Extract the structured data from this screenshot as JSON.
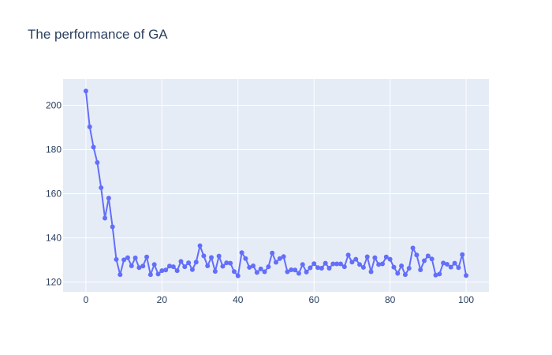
{
  "chart_data": {
    "type": "line",
    "title": "The performance of GA",
    "xlabel": "",
    "ylabel": "",
    "xlim": [
      -6,
      106
    ],
    "ylim": [
      115.5,
      212
    ],
    "x_ticks": [
      0,
      20,
      40,
      60,
      80,
      100
    ],
    "y_ticks": [
      120,
      140,
      160,
      180,
      200
    ],
    "grid": true,
    "colors": {
      "plot_background": "#e5ecf6",
      "grid": "#ffffff",
      "series": "#636efa",
      "text": "#2a3f5f"
    },
    "series": [
      {
        "mode": "lines+markers",
        "x": [
          0,
          1,
          2,
          3,
          4,
          5,
          6,
          7,
          8,
          9,
          10,
          11,
          12,
          13,
          14,
          15,
          16,
          17,
          18,
          19,
          20,
          21,
          22,
          23,
          24,
          25,
          26,
          27,
          28,
          29,
          30,
          31,
          32,
          33,
          34,
          35,
          36,
          37,
          38,
          39,
          40,
          41,
          42,
          43,
          44,
          45,
          46,
          47,
          48,
          49,
          50,
          51,
          52,
          53,
          54,
          55,
          56,
          57,
          58,
          59,
          60,
          61,
          62,
          63,
          64,
          65,
          66,
          67,
          68,
          69,
          70,
          71,
          72,
          73,
          74,
          75,
          76,
          77,
          78,
          79,
          80,
          81,
          82,
          83,
          84,
          85,
          86,
          87,
          88,
          89,
          90,
          91,
          92,
          93,
          94,
          95,
          96,
          97,
          98,
          99,
          100
        ],
        "y": [
          206.5,
          190.3,
          181.1,
          174.1,
          162.7,
          148.9,
          158,
          145,
          130.2,
          123.3,
          130,
          131,
          127.3,
          130.9,
          126.5,
          127.2,
          131.3,
          123.3,
          127.9,
          123.6,
          125.1,
          125.4,
          127.2,
          126.9,
          125.1,
          129.3,
          126.9,
          128.7,
          125.6,
          129,
          136.4,
          131.8,
          127.3,
          131.1,
          124.8,
          131.7,
          127.1,
          128.7,
          128.5,
          124.7,
          122.8,
          133.3,
          130.6,
          126.6,
          127.3,
          124.3,
          125.9,
          124.6,
          126.9,
          133.1,
          128.9,
          130.6,
          131.5,
          124.6,
          125.5,
          125.4,
          123.9,
          127.9,
          124.5,
          126.4,
          128.3,
          126.5,
          126.2,
          128.5,
          126.2,
          128.2,
          128.2,
          128.2,
          126.9,
          132.2,
          129,
          130.3,
          127.9,
          126.6,
          131.4,
          124.6,
          131,
          127.9,
          128.2,
          131.3,
          130.3,
          126.7,
          123.9,
          127.3,
          123.3,
          126.2,
          135.4,
          132.2,
          125.5,
          129.6,
          131.8,
          130.4,
          123.1,
          123.6,
          128.6,
          128,
          126.7,
          128.5,
          126.5,
          132.4,
          122.9
        ]
      }
    ]
  }
}
